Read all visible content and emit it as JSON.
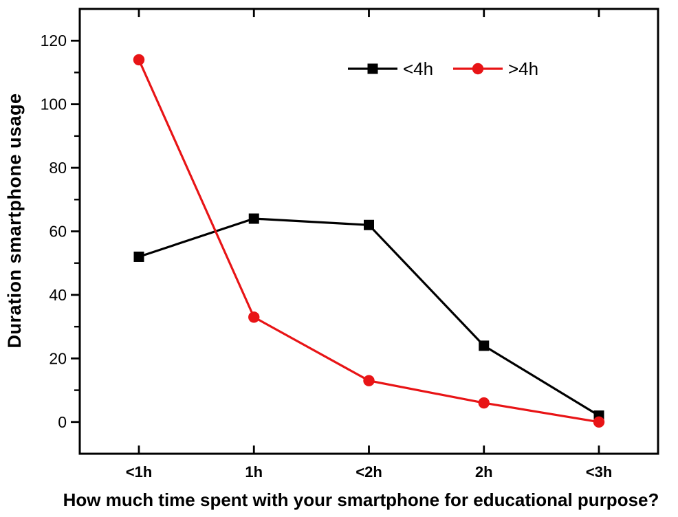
{
  "chart_data": {
    "type": "line",
    "xlabel": "How much time spent with your smartphone for educational purpose?",
    "ylabel": "Duration smartphone usage",
    "categories": [
      "<1h",
      "1h",
      "<2h",
      "2h",
      "<3h"
    ],
    "series": [
      {
        "name": "<4h",
        "color": "#000000",
        "marker": "square",
        "values": [
          52,
          64,
          62,
          24,
          2
        ]
      },
      {
        "name": ">4h",
        "color": "#e81416",
        "marker": "circle",
        "values": [
          114,
          33,
          13,
          6,
          0
        ]
      }
    ],
    "y_ticks": [
      0,
      20,
      40,
      60,
      80,
      100,
      120
    ],
    "y_minor_ticks": [
      10,
      30,
      50,
      70,
      90,
      110
    ],
    "ylim": [
      -10,
      130
    ],
    "grid": false,
    "legend_position": "top-center",
    "background_color": "#ffffff",
    "axis_color": "#000000"
  }
}
